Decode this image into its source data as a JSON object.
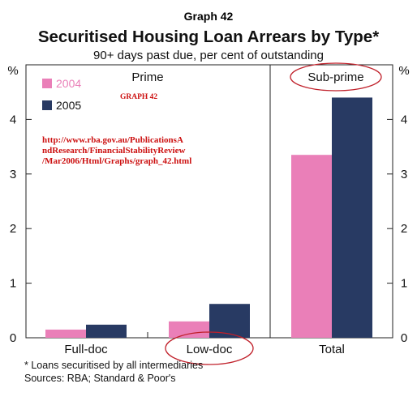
{
  "header": {
    "graph_number": "Graph 42"
  },
  "chart_data": {
    "type": "bar",
    "title": "Securitised Housing Loan Arrears by Type*",
    "subtitle": "90+ days past due, per cent of outstanding",
    "ylabel_left": "%",
    "ylabel_right": "%",
    "ylim": [
      0,
      5
    ],
    "yticks": [
      0,
      1,
      2,
      3,
      4
    ],
    "grid": false,
    "legend_position": "top-left",
    "panels": [
      {
        "label": "Prime",
        "categories": [
          "Full-doc",
          "Low-doc"
        ]
      },
      {
        "label": "Sub-prime",
        "categories": [
          "Total"
        ]
      }
    ],
    "categories": [
      "Full-doc",
      "Low-doc",
      "Total"
    ],
    "series": [
      {
        "name": "2004",
        "color": "#ea7fb8",
        "values": [
          0.15,
          0.3,
          3.35
        ]
      },
      {
        "name": "2005",
        "color": "#283a63",
        "values": [
          0.24,
          0.62,
          4.4
        ]
      }
    ]
  },
  "annotations": {
    "stamp": "GRAPH 42",
    "url_lines": [
      "http://www.rba.gov.au/PublicationsA",
      "ndResearch/FinancialStabilityReview",
      "/Mar2006/Html/Graphs/graph_42.html"
    ],
    "ellipse_color": "#c0202a",
    "url_color": "#cc1010"
  },
  "footer": {
    "footnote": "*   Loans securitised by all intermediaries",
    "sources": "Sources: RBA; Standard & Poor's"
  }
}
